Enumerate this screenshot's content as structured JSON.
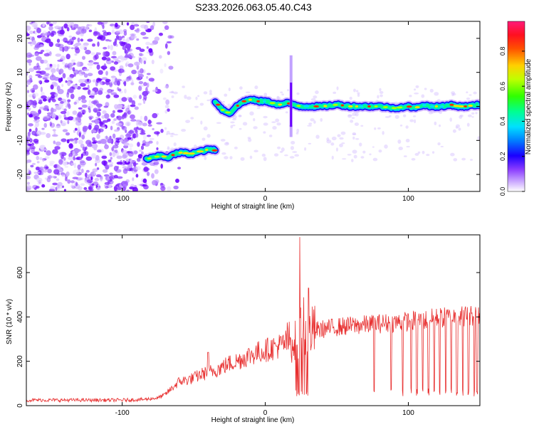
{
  "title": "S233.2026.063.05.40.C43",
  "chart_data": [
    {
      "type": "heatmap",
      "xlabel": "Height of straight line (km)",
      "ylabel": "Frequency (Hz)",
      "xlim": [
        -167,
        150
      ],
      "ylim": [
        -25,
        25
      ],
      "x_ticks": [
        -100,
        0,
        100
      ],
      "x_tick_labels": [
        "-100",
        "0",
        "100"
      ],
      "y_ticks": [
        -20,
        -10,
        0,
        10,
        20
      ],
      "y_tick_labels": [
        "-20",
        "-10",
        "0",
        "10",
        "20"
      ],
      "colorbar": {
        "label": "Normalized spectral amplitude",
        "range": [
          0,
          0.97
        ],
        "ticks": [
          0.0,
          0.2,
          0.4,
          0.6,
          0.8
        ],
        "tick_labels": [
          "0.0",
          "0.2",
          "0.4",
          "0.6",
          "0.8"
        ],
        "colors": [
          "#ffffff",
          "#9a4cff",
          "#1a00ff",
          "#00c8ff",
          "#00ff70",
          "#d8ff00",
          "#ffd000",
          "#ff2a00",
          "#ff1a7a"
        ]
      },
      "noise_region_x": [
        -167,
        -70
      ],
      "tracks": [
        {
          "name": "lower-track",
          "x": [
            -83,
            -78,
            -73,
            -68,
            -63,
            -58,
            -53,
            -48,
            -43,
            -38,
            -35
          ],
          "freq": [
            -15.5,
            -15,
            -14.5,
            -15,
            -14,
            -13.5,
            -14,
            -13.5,
            -13,
            -12.5,
            -13
          ]
        },
        {
          "name": "upper-track",
          "x": [
            -35,
            -30,
            -25,
            -20,
            -15,
            -10,
            -5,
            0,
            5,
            10,
            15,
            20,
            25,
            30,
            40,
            50,
            60,
            70,
            80,
            90,
            100,
            105,
            110,
            115,
            120,
            125,
            130,
            135,
            140,
            150
          ],
          "freq": [
            1.5,
            -1,
            -2,
            0,
            1.5,
            2,
            1.5,
            1.5,
            1,
            0.5,
            1,
            0.5,
            0,
            0,
            0,
            0.5,
            0,
            0,
            0,
            -0.5,
            0,
            -0.5,
            0.5,
            0,
            0,
            0,
            0.5,
            0,
            0,
            0.5
          ]
        }
      ],
      "spike": {
        "x": 18,
        "freq_range": [
          -9,
          15
        ]
      }
    },
    {
      "type": "line",
      "xlabel": "Height of straight line (km)",
      "ylabel": "SNR (10 * v/v)",
      "xlim": [
        -167,
        150
      ],
      "ylim": [
        0,
        770
      ],
      "x_ticks": [
        -100,
        0,
        100
      ],
      "x_tick_labels": [
        "-100",
        "0",
        "100"
      ],
      "y_ticks": [
        0,
        200,
        400,
        600
      ],
      "y_tick_labels": [
        "0",
        "200",
        "400",
        "600"
      ],
      "color": "#e83030",
      "series": [
        {
          "name": "snr",
          "x": [
            -167,
            -140,
            -120,
            -100,
            -85,
            -75,
            -70,
            -65,
            -60,
            -55,
            -50,
            -45,
            -40,
            -35,
            -30,
            -25,
            -20,
            -15,
            -10,
            -5,
            0,
            5,
            10,
            15,
            20,
            24,
            26,
            28,
            30,
            35,
            40,
            50,
            60,
            70,
            80,
            90,
            100,
            110,
            120,
            130,
            140,
            150
          ],
          "y": [
            25,
            25,
            25,
            25,
            28,
            35,
            50,
            80,
            110,
            115,
            125,
            140,
            150,
            160,
            175,
            190,
            200,
            215,
            230,
            240,
            250,
            260,
            270,
            285,
            300,
            330,
            380,
            340,
            330,
            340,
            345,
            355,
            360,
            365,
            370,
            375,
            380,
            385,
            395,
            400,
            405,
            410
          ]
        }
      ],
      "peaks": [
        {
          "x": 24,
          "y": 760
        },
        {
          "x": 30,
          "y": 530
        },
        {
          "x": -40,
          "y": 240
        }
      ],
      "dropouts_x": [
        76,
        88,
        96,
        102,
        106,
        110,
        114,
        118,
        122,
        126,
        130,
        134,
        138,
        142,
        146,
        148
      ]
    }
  ]
}
